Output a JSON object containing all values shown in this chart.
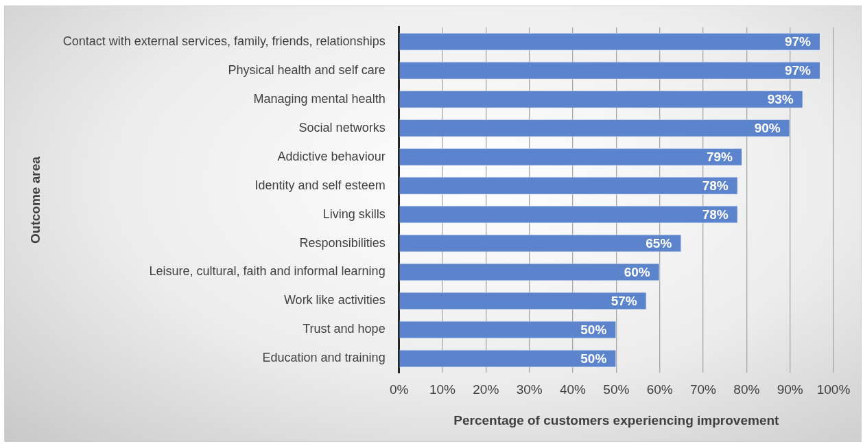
{
  "chart_data": {
    "type": "bar",
    "orientation": "horizontal",
    "xlabel": "Percentage of customers experiencing improvement",
    "ylabel": "Outcome area",
    "categories": [
      "Contact with external services, family, friends, relationships",
      "Physical health and self care",
      "Managing mental health",
      "Social networks",
      "Addictive behaviour",
      "Identity and self esteem",
      "Living skills",
      "Responsibilities",
      "Leisure, cultural, faith and informal learning",
      "Work like activities",
      "Trust and hope",
      "Education and training"
    ],
    "values": [
      97,
      97,
      93,
      90,
      79,
      78,
      78,
      65,
      60,
      57,
      50,
      50
    ],
    "value_labels": [
      "97%",
      "97%",
      "93%",
      "90%",
      "79%",
      "78%",
      "78%",
      "65%",
      "60%",
      "57%",
      "50%",
      "50%"
    ],
    "color": "#5b84cc",
    "xlim": [
      0,
      100
    ],
    "xticks": [
      {
        "value": 0,
        "label": "0%"
      },
      {
        "value": 10,
        "label": "10%"
      },
      {
        "value": 20,
        "label": "20%"
      },
      {
        "value": 30,
        "label": "30%"
      },
      {
        "value": 40,
        "label": "40%"
      },
      {
        "value": 50,
        "label": "50%"
      },
      {
        "value": 60,
        "label": "60%"
      },
      {
        "value": 70,
        "label": "70%"
      },
      {
        "value": 80,
        "label": "80%"
      },
      {
        "value": 90,
        "label": "90%"
      },
      {
        "value": 100,
        "label": "100%"
      }
    ],
    "grid": "x",
    "legend": false
  }
}
